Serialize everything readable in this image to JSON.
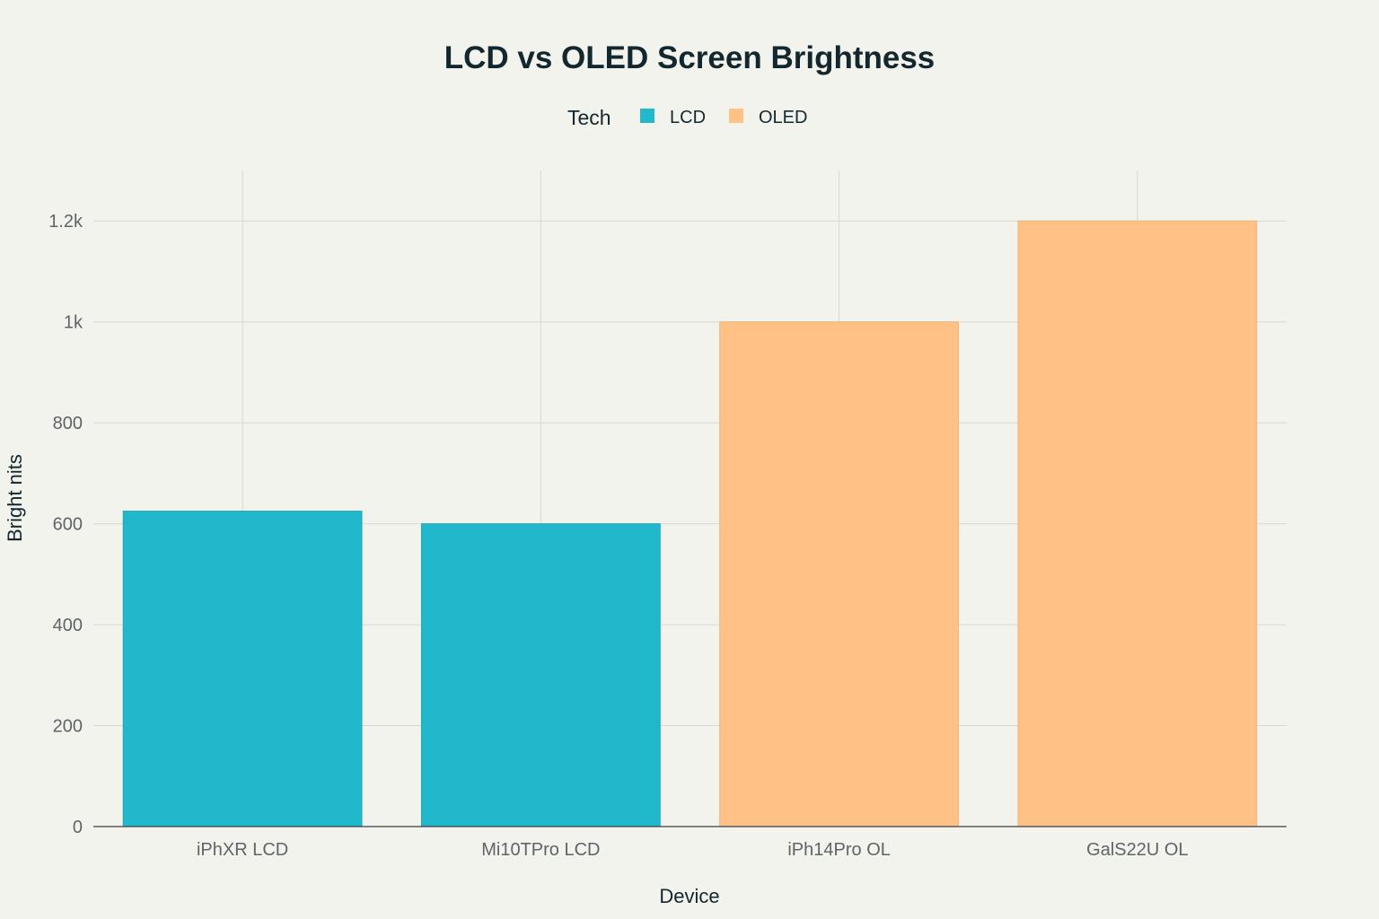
{
  "chart_data": {
    "type": "bar",
    "title": "LCD vs OLED Screen Brightness",
    "xlabel": "Device",
    "ylabel": "Bright nits",
    "categories": [
      "iPhXR LCD",
      "Mi10TPro LCD",
      "iPh14Pro OL",
      "GalS22U OL"
    ],
    "values": [
      625,
      600,
      1000,
      1200
    ],
    "tech": [
      "LCD",
      "LCD",
      "OLED",
      "OLED"
    ],
    "ylim": [
      0,
      1300
    ],
    "yticks": [
      0,
      200,
      400,
      600,
      800,
      1000,
      1200
    ],
    "ytick_labels": [
      "0",
      "200",
      "400",
      "600",
      "800",
      "1k",
      "1.2k"
    ],
    "grid": true,
    "legend": {
      "title": "Tech",
      "placement": "top-center",
      "entries": [
        {
          "name": "LCD",
          "color": "#21b8cc"
        },
        {
          "name": "OLED",
          "color": "#ffc185"
        }
      ]
    }
  },
  "colors": {
    "background": "#f3f3ee",
    "lcd": "#21b8cc",
    "oled": "#ffc185"
  }
}
